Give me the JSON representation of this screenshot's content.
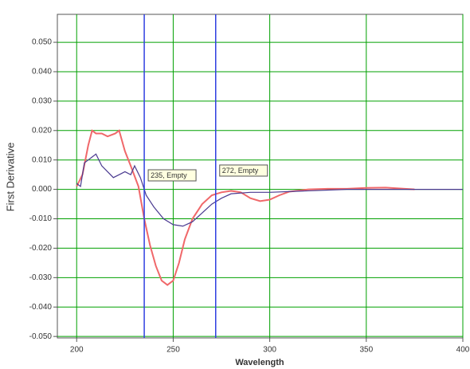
{
  "chart_data": {
    "type": "line",
    "x_label": "Wavelength",
    "y_label": "First Derivative",
    "xlim": [
      190,
      400
    ],
    "ylim": [
      -0.0505,
      0.0595
    ],
    "xticks": [
      200,
      250,
      300,
      350,
      400
    ],
    "yticks": [
      {
        "value": 0.05,
        "label": "0.050"
      },
      {
        "value": 0.04,
        "label": "0.040"
      },
      {
        "value": 0.03,
        "label": "0.030"
      },
      {
        "value": 0.02,
        "label": "0.020"
      },
      {
        "value": 0.01,
        "label": "0.010"
      },
      {
        "value": 0,
        "label": "0.000"
      },
      {
        "value": -0.01,
        "label": "-0.010"
      },
      {
        "value": -0.02,
        "label": "-0.020"
      },
      {
        "value": -0.03,
        "label": "-0.030"
      },
      {
        "value": -0.04,
        "label": "-0.040"
      },
      {
        "value": -0.05,
        "label": "-0.050"
      }
    ],
    "grid": true,
    "grid_color": "#00a000",
    "markers": [
      {
        "x": 235,
        "label": "235, Empty"
      },
      {
        "x": 272,
        "label": "272, Empty"
      }
    ],
    "marker_color": "#2f3fe0",
    "series": [
      {
        "color": "#f0686a",
        "x": [
          200,
          203,
          206,
          208,
          210,
          213,
          216,
          220,
          222,
          225,
          228,
          232,
          235,
          238,
          241,
          244,
          247,
          250,
          253,
          256,
          260,
          265,
          270,
          275,
          280,
          285,
          290,
          295,
          300,
          305,
          310,
          320,
          330,
          340,
          350,
          360,
          370,
          375
        ],
        "values": [
          0.001,
          0.005,
          0.015,
          0.02,
          0.019,
          0.019,
          0.018,
          0.019,
          0.02,
          0.013,
          0.008,
          0.001,
          -0.01,
          -0.019,
          -0.026,
          -0.031,
          -0.0325,
          -0.031,
          -0.025,
          -0.017,
          -0.01,
          -0.005,
          -0.002,
          -0.001,
          -0.0005,
          -0.001,
          -0.003,
          -0.004,
          -0.0035,
          -0.002,
          -0.0008,
          0,
          0.0002,
          0.0002,
          0.0005,
          0.0006,
          0.0002,
          0
        ]
      },
      {
        "color": "#4a3a90",
        "x": [
          200,
          202,
          204,
          206,
          208,
          210,
          213,
          216,
          219,
          222,
          225,
          228,
          230,
          233,
          236,
          240,
          245,
          250,
          255,
          260,
          265,
          270,
          275,
          280,
          290,
          300,
          320,
          340,
          400
        ],
        "values": [
          0.002,
          0.001,
          0.009,
          0.01,
          0.011,
          0.012,
          0.008,
          0.006,
          0.004,
          0.005,
          0.006,
          0.005,
          0.008,
          0.004,
          -0.002,
          -0.006,
          -0.01,
          -0.012,
          -0.0125,
          -0.011,
          -0.008,
          -0.005,
          -0.003,
          -0.0015,
          -0.001,
          -0.001,
          -0.0005,
          0,
          0
        ]
      }
    ]
  }
}
